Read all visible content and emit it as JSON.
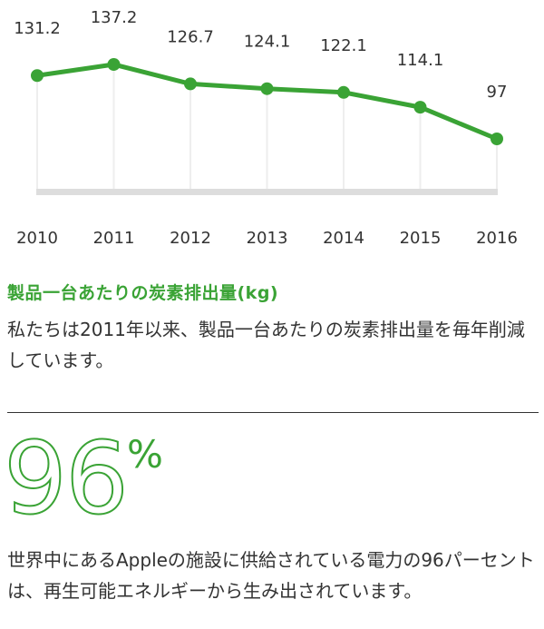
{
  "chart_data": {
    "type": "line",
    "x": [
      "2010",
      "2011",
      "2012",
      "2013",
      "2014",
      "2015",
      "2016"
    ],
    "values": [
      131.2,
      137.2,
      126.7,
      124.1,
      122.1,
      114.1,
      97
    ],
    "value_labels": [
      "131.2",
      "137.2",
      "126.7",
      "124.1",
      "122.1",
      "114.1",
      "97"
    ],
    "line_color": "#3aa335",
    "axis_color": "#dddddd",
    "gridline_color": "#eeeeee",
    "grid": "vertical"
  },
  "metric": {
    "title": "製品一台あたりの炭素排出量(kg)",
    "description": "私たちは2011年以来、製品一台あたりの炭素排出量を毎年削減しています。"
  },
  "renewable": {
    "number": "96",
    "unit": "%",
    "description": "世界中にあるAppleの施設に供給されている電力の96パーセントは、再生可能エネルギーから生み出されています。"
  },
  "colors": {
    "accent": "#3aa335",
    "text": "#333333"
  }
}
